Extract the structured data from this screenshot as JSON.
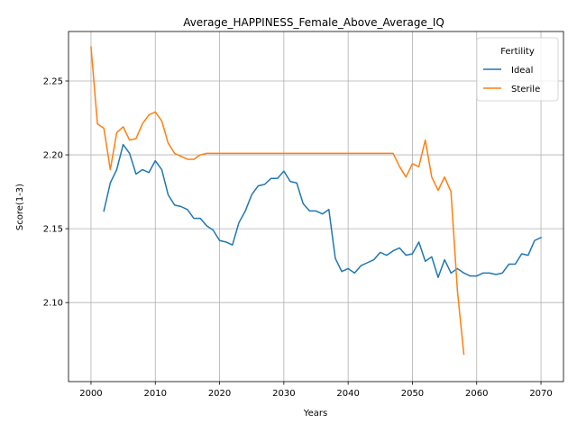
{
  "chart_data": {
    "type": "line",
    "title": "Average_HAPPINESS_Female_Above_Average_IQ",
    "xlabel": "Years",
    "ylabel": "Score(1-3)",
    "xlim": [
      1996.5,
      2073.5
    ],
    "ylim": [
      2.0465,
      2.2835
    ],
    "xticks": [
      2000,
      2010,
      2020,
      2030,
      2040,
      2050,
      2060,
      2070
    ],
    "yticks": [
      2.1,
      2.15,
      2.2,
      2.25
    ],
    "ytick_labels": [
      "2.10",
      "2.15",
      "2.20",
      "2.25"
    ],
    "grid": true,
    "legend": {
      "title": "Fertility",
      "position": "top-right"
    },
    "series": [
      {
        "name": "Ideal",
        "color": "#1f77b4",
        "points": [
          [
            2002,
            2.162
          ],
          [
            2003,
            2.181
          ],
          [
            2004,
            2.19
          ],
          [
            2005,
            2.207
          ],
          [
            2006,
            2.201
          ],
          [
            2007,
            2.187
          ],
          [
            2008,
            2.19
          ],
          [
            2009,
            2.188
          ],
          [
            2010,
            2.196
          ],
          [
            2011,
            2.19
          ],
          [
            2012,
            2.173
          ],
          [
            2013,
            2.166
          ],
          [
            2014,
            2.165
          ],
          [
            2015,
            2.163
          ],
          [
            2016,
            2.157
          ],
          [
            2017,
            2.157
          ],
          [
            2018,
            2.152
          ],
          [
            2019,
            2.149
          ],
          [
            2020,
            2.142
          ],
          [
            2021,
            2.141
          ],
          [
            2022,
            2.139
          ],
          [
            2023,
            2.154
          ],
          [
            2024,
            2.162
          ],
          [
            2025,
            2.173
          ],
          [
            2026,
            2.179
          ],
          [
            2027,
            2.18
          ],
          [
            2028,
            2.184
          ],
          [
            2029,
            2.184
          ],
          [
            2030,
            2.189
          ],
          [
            2031,
            2.182
          ],
          [
            2032,
            2.181
          ],
          [
            2033,
            2.167
          ],
          [
            2034,
            2.162
          ],
          [
            2035,
            2.162
          ],
          [
            2036,
            2.16
          ],
          [
            2037,
            2.163
          ],
          [
            2038,
            2.13
          ],
          [
            2039,
            2.121
          ],
          [
            2040,
            2.123
          ],
          [
            2041,
            2.12
          ],
          [
            2042,
            2.125
          ],
          [
            2043,
            2.127
          ],
          [
            2044,
            2.129
          ],
          [
            2045,
            2.134
          ],
          [
            2046,
            2.132
          ],
          [
            2047,
            2.135
          ],
          [
            2048,
            2.137
          ],
          [
            2049,
            2.132
          ],
          [
            2050,
            2.133
          ],
          [
            2051,
            2.141
          ],
          [
            2052,
            2.128
          ],
          [
            2053,
            2.131
          ],
          [
            2054,
            2.117
          ],
          [
            2055,
            2.129
          ],
          [
            2056,
            2.12
          ],
          [
            2057,
            2.123
          ],
          [
            2058,
            2.12
          ],
          [
            2059,
            2.118
          ],
          [
            2060,
            2.118
          ],
          [
            2061,
            2.12
          ],
          [
            2062,
            2.12
          ],
          [
            2063,
            2.119
          ],
          [
            2064,
            2.12
          ],
          [
            2065,
            2.126
          ],
          [
            2066,
            2.126
          ],
          [
            2067,
            2.133
          ],
          [
            2068,
            2.132
          ],
          [
            2069,
            2.142
          ],
          [
            2070,
            2.144
          ]
        ]
      },
      {
        "name": "Sterile",
        "color": "#ff7f0e",
        "points": [
          [
            2000,
            2.273
          ],
          [
            2001,
            2.221
          ],
          [
            2002,
            2.218
          ],
          [
            2003,
            2.19
          ],
          [
            2004,
            2.215
          ],
          [
            2005,
            2.219
          ],
          [
            2006,
            2.21
          ],
          [
            2007,
            2.211
          ],
          [
            2008,
            2.221
          ],
          [
            2009,
            2.227
          ],
          [
            2010,
            2.229
          ],
          [
            2011,
            2.223
          ],
          [
            2012,
            2.208
          ],
          [
            2013,
            2.201
          ],
          [
            2014,
            2.199
          ],
          [
            2015,
            2.197
          ],
          [
            2016,
            2.197
          ],
          [
            2017,
            2.2
          ],
          [
            2018,
            2.201
          ],
          [
            2019,
            2.201
          ],
          [
            2020,
            2.201
          ],
          [
            2025,
            2.201
          ],
          [
            2030,
            2.201
          ],
          [
            2035,
            2.201
          ],
          [
            2040,
            2.201
          ],
          [
            2045,
            2.201
          ],
          [
            2047,
            2.201
          ],
          [
            2048,
            2.192
          ],
          [
            2049,
            2.185
          ],
          [
            2050,
            2.194
          ],
          [
            2051,
            2.192
          ],
          [
            2052,
            2.21
          ],
          [
            2053,
            2.185
          ],
          [
            2054,
            2.176
          ],
          [
            2055,
            2.185
          ],
          [
            2056,
            2.175
          ],
          [
            2057,
            2.108
          ],
          [
            2058,
            2.065
          ]
        ]
      }
    ]
  }
}
